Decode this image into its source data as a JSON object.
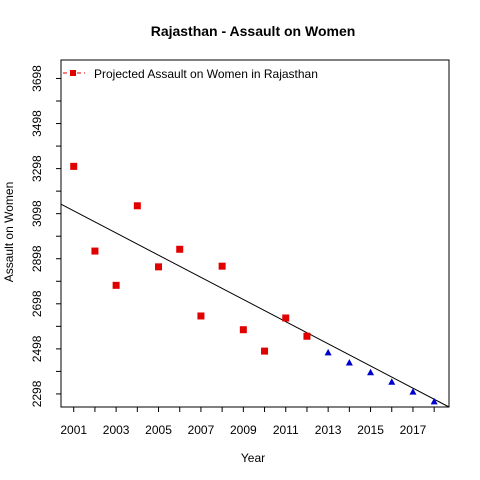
{
  "chart_data": {
    "type": "scatter",
    "title": "Rajasthan  -  Assault on Women",
    "xlabel": "Year",
    "ylabel": "Assault on Women",
    "xlim": [
      2000.4,
      2018.7
    ],
    "ylim": [
      2240,
      3780
    ],
    "x_ticks": [
      2001,
      2003,
      2005,
      2007,
      2009,
      2011,
      2013,
      2015,
      2017
    ],
    "y_ticks": [
      2298,
      2498,
      2698,
      2898,
      3098,
      3298,
      3498,
      3698
    ],
    "legend": {
      "position": "top-left",
      "entries": [
        "Projected  Assault on Women  in  Rajasthan"
      ]
    },
    "colors": {
      "observed": "#e00000",
      "projected": "#0000cc",
      "trend": "#000000"
    },
    "series": [
      {
        "name": "Projected  Assault on Women  in  Rajasthan",
        "marker": "square",
        "x": [
          2001,
          2002,
          2003,
          2004,
          2005,
          2006,
          2007,
          2008,
          2009,
          2010,
          2011,
          2012
        ],
        "y": [
          3308,
          2932,
          2780,
          3133,
          2862,
          2940,
          2644,
          2865,
          2583,
          2488,
          2635,
          2554
        ]
      },
      {
        "marker": "triangle",
        "x": [
          2013,
          2014,
          2015,
          2016,
          2017,
          2018
        ],
        "y": [
          2480,
          2435,
          2392,
          2350,
          2306,
          2263
        ]
      }
    ],
    "trend_line": {
      "x": [
        2000.4,
        2018.7
      ],
      "y": [
        3140,
        2240
      ]
    },
    "grid": false
  }
}
